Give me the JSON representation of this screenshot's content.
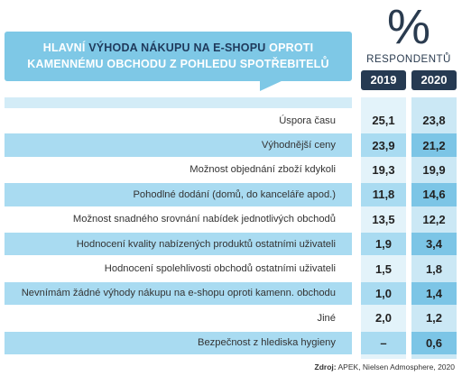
{
  "header": {
    "title": {
      "part1": "HLAVNÍ ",
      "highlight": "VÝHODA NÁKUPU NA E-SHOPU",
      "part2": " OPROTI KAMENNÉMU OBCHODU Z POHLEDU SPOTŘEBITELŮ"
    },
    "unit_symbol": "%",
    "unit_label": "RESPONDENTŮ"
  },
  "table": {
    "columns": [
      "2019",
      "2020"
    ],
    "rows": [
      [
        "Úspora času",
        "25,1",
        "23,8"
      ],
      [
        "Výhodnější ceny",
        "23,9",
        "21,2"
      ],
      [
        "Možnost objednání zboží kdykoli",
        "19,3",
        "19,9"
      ],
      [
        "Pohodlné dodání (domů, do kanceláře apod.)",
        "11,8",
        "14,6"
      ],
      [
        "Možnost snadného srovnání nabídek jednotlivých obchodů",
        "13,5",
        "12,2"
      ],
      [
        "Hodnocení kvality nabízených produktů ostatními uživateli",
        "1,9",
        "3,4"
      ],
      [
        "Hodnocení spolehlivosti obchodů ostatními uživateli",
        "1,5",
        "1,8"
      ],
      [
        "Nevnímám žádné výhody nákupu na e-shopu oproti kamenn. obchodu",
        "1,0",
        "1,4"
      ],
      [
        "Jiné",
        "2,0",
        "1,2"
      ],
      [
        "Bezpečnost z hlediska hygieny",
        "–",
        "0,6"
      ]
    ]
  },
  "source": {
    "label": "Zdroj:",
    "text": " APEK, Nielsen Admosphere, 2020"
  }
}
